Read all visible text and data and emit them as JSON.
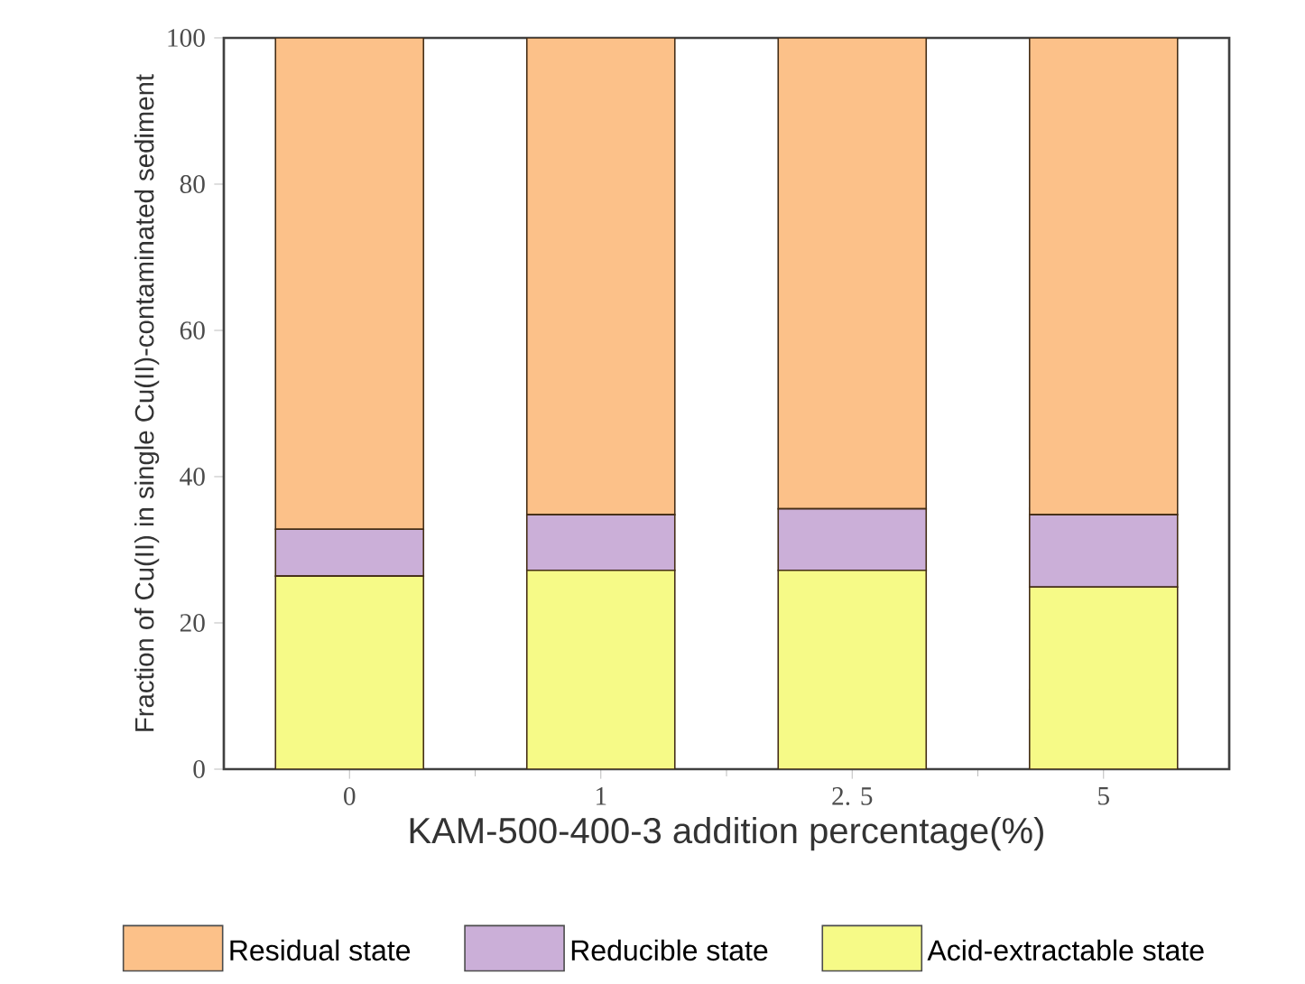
{
  "chart_data": {
    "type": "bar",
    "stacked": true,
    "xlabel": "KAM-500-400-3 addition percentage(%)",
    "ylabel": "Fraction of Cu(II) in single Cu(II)-contaminated sediment",
    "categories": [
      "0",
      "1",
      "2. 5",
      "5"
    ],
    "series": [
      {
        "name": "Acid-extractable state",
        "color": "#f6fa87",
        "values": [
          26.4,
          27.2,
          27.2,
          24.9
        ]
      },
      {
        "name": "Reducible state",
        "color": "#cbafd8",
        "values": [
          6.4,
          7.6,
          8.4,
          9.9
        ]
      },
      {
        "name": "Residual state",
        "color": "#fcc189",
        "values": [
          67.2,
          65.2,
          64.4,
          65.2
        ]
      }
    ],
    "ylim": [
      0,
      100
    ],
    "yticks": [
      0,
      20,
      40,
      60,
      80,
      100
    ],
    "legend": "bottom",
    "grid": false
  }
}
